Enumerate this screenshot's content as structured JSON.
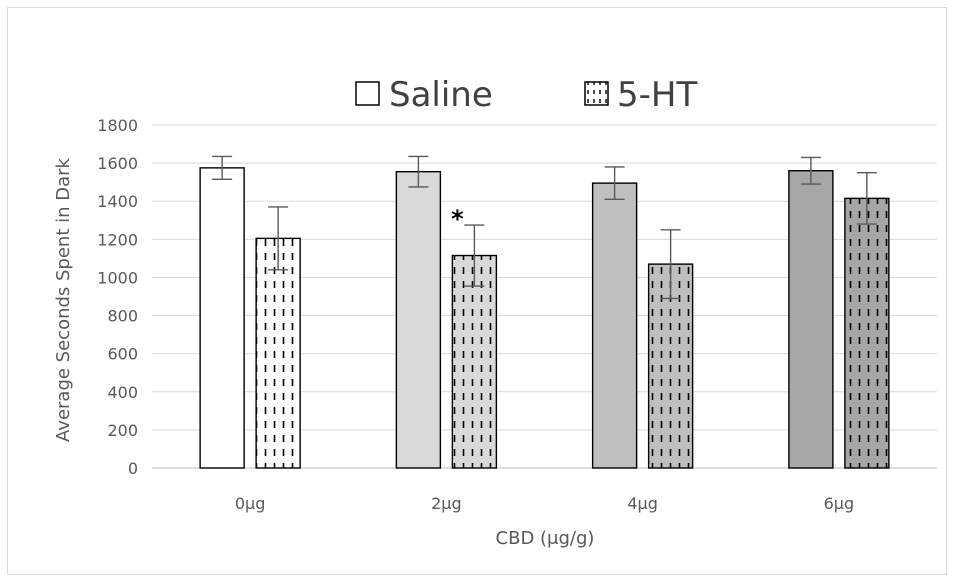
{
  "chart_data": {
    "type": "bar",
    "title": "",
    "xlabel": "CBD (μg/g)",
    "ylabel": "Average Seconds Spent in Dark",
    "categories": [
      "0μg",
      "2μg",
      "4μg",
      "6μg"
    ],
    "ylim": [
      0,
      1800
    ],
    "yticks": [
      0,
      200,
      400,
      600,
      800,
      1000,
      1200,
      1400,
      1600,
      1800
    ],
    "grid": true,
    "legend_position": "top-center",
    "series": [
      {
        "name": "Saline",
        "pattern": "solid",
        "values": [
          1575,
          1555,
          1495,
          1560
        ],
        "errors": [
          60,
          80,
          85,
          70
        ],
        "fill_colors": [
          "#ffffff",
          "#d9d9d9",
          "#bfbfbf",
          "#a6a6a6"
        ]
      },
      {
        "name": "5-HT",
        "pattern": "dashed-vertical",
        "values": [
          1205,
          1115,
          1070,
          1415
        ],
        "errors": [
          165,
          160,
          180,
          135
        ],
        "fill_colors": [
          "#ffffff",
          "#d9d9d9",
          "#bfbfbf",
          "#a6a6a6"
        ]
      }
    ],
    "annotations": [
      {
        "text": "*",
        "category": "2μg",
        "series": "5-HT"
      }
    ]
  }
}
